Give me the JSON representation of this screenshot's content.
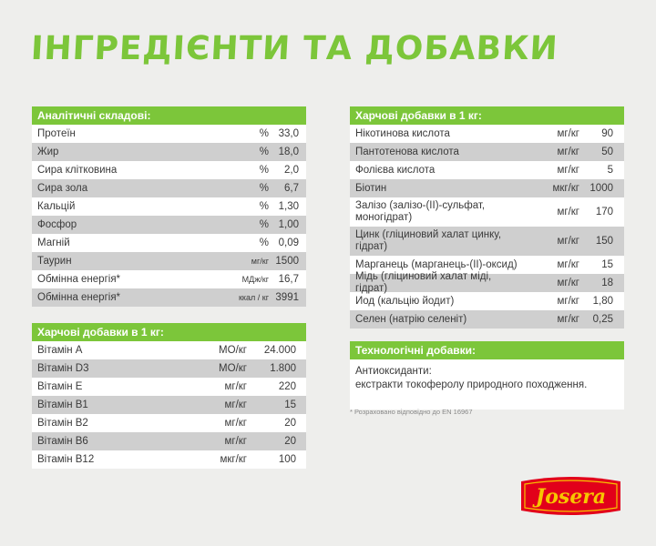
{
  "title": "ІНГРЕДІЄНТИ ТА ДОБАВКИ",
  "analytic": {
    "header": "Аналітичні складові:",
    "rows": [
      {
        "name": "Протеїн",
        "unit": "%",
        "value": "33,0"
      },
      {
        "name": "Жир",
        "unit": "%",
        "value": "18,0"
      },
      {
        "name": "Сира клітковина",
        "unit": "%",
        "value": "2,0"
      },
      {
        "name": "Сира зола",
        "unit": "%",
        "value": "6,7"
      },
      {
        "name": "Кальцій",
        "unit": "%",
        "value": "1,30"
      },
      {
        "name": "Фосфор",
        "unit": "%",
        "value": "1,00"
      },
      {
        "name": "Магній",
        "unit": "%",
        "value": "0,09"
      },
      {
        "name": "Таурин",
        "unit": "мг/кг",
        "value": "1500"
      },
      {
        "name": "Обмінна енергія*",
        "unit": "МДж/кг",
        "value": "16,7"
      },
      {
        "name": "Обмінна енергія*",
        "unit": "ккал / кг",
        "value": "3991"
      }
    ]
  },
  "vitamins": {
    "header": "Харчові добавки в 1 кг:",
    "rows": [
      {
        "name": "Вітамін A",
        "unit": "МО/кг",
        "value": "24.000"
      },
      {
        "name": "Вітамін D3",
        "unit": "МО/кг",
        "value": "1.800"
      },
      {
        "name": "Вітамін E",
        "unit": "мг/кг",
        "value": "220"
      },
      {
        "name": "Вітамін B1",
        "unit": "мг/кг",
        "value": "15"
      },
      {
        "name": "Вітамін B2",
        "unit": "мг/кг",
        "value": "20"
      },
      {
        "name": "Вітамін B6",
        "unit": "мг/кг",
        "value": "20"
      },
      {
        "name": "Вітамін B12",
        "unit": "мкг/кг",
        "value": "100"
      }
    ]
  },
  "minerals": {
    "header": "Харчові добавки в 1 кг:",
    "rows": [
      {
        "name": "Нікотинова кислота",
        "unit": "мг/кг",
        "value": "90"
      },
      {
        "name": "Пантотенова кислота",
        "unit": "мг/кг",
        "value": "50"
      },
      {
        "name": "Фолієва кислота",
        "unit": "мг/кг",
        "value": "5"
      },
      {
        "name": "Біотин",
        "unit": "мкг/кг",
        "value": "1000"
      },
      {
        "name": "Залізо (залізо-(II)-сульфат, моногідрат)",
        "unit": "мг/кг",
        "value": "170"
      },
      {
        "name": "Цинк (гліциновий халат цинку, гідрат)",
        "unit": "мг/кг",
        "value": "150"
      },
      {
        "name": "Марганець (марганець-(II)-оксид)",
        "unit": "мг/кг",
        "value": "15"
      },
      {
        "name": "Мідь (гліциновий халат міді, гідрат)",
        "unit": "мг/кг",
        "value": "18"
      },
      {
        "name": "Йод (кальцію йодит)",
        "unit": "мг/кг",
        "value": "1,80"
      },
      {
        "name": "Селен (натрію селеніт)",
        "unit": "мг/кг",
        "value": "0,25"
      }
    ]
  },
  "tech": {
    "header": "Технологічні добавки:",
    "line1": "Антиоксиданти:",
    "line2": "екстракти токоферолу природного походження."
  },
  "footnote": "* Розраховано відповідно до EN 16967",
  "logo": {
    "text": "Josera",
    "colors": {
      "red": "#e2001a",
      "yellow": "#f7c600"
    }
  },
  "colors": {
    "accent": "#7cc63a",
    "alt_row": "#cfcfcf",
    "background": "#eeeeec"
  }
}
